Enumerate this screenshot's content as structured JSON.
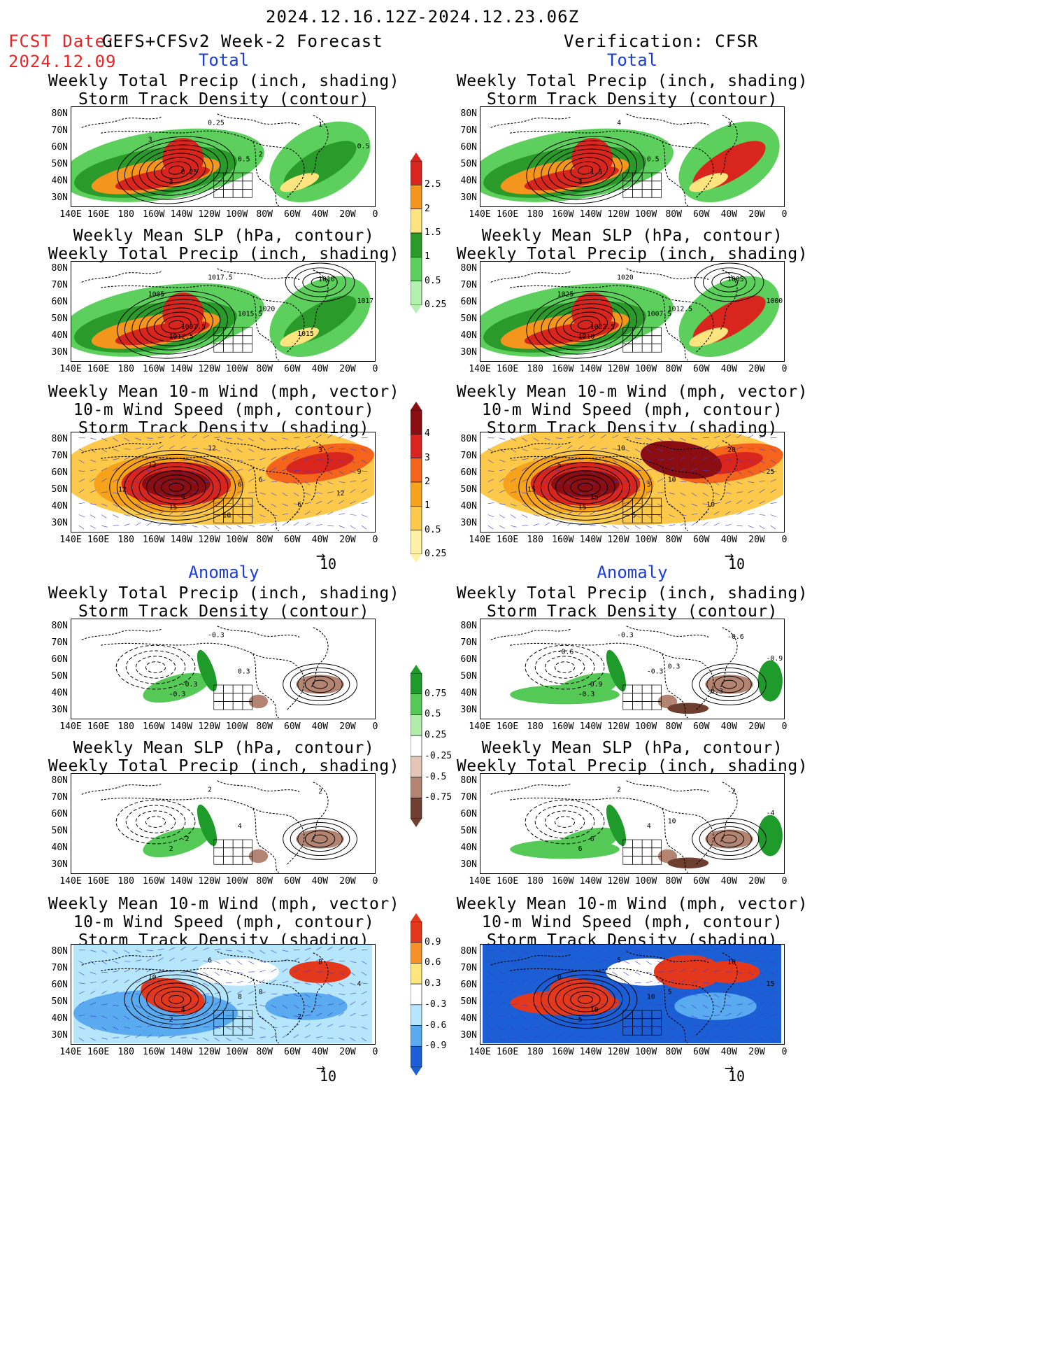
{
  "header": {
    "date_range": "2024.12.16.12Z-2024.12.23.06Z",
    "fcst_label": "FCST Date:",
    "fcst_model": "GEFS+CFSv2 Week-2 Forecast",
    "fcst_date": "2024.12.09",
    "verification": "Verification: CFSR"
  },
  "sections": {
    "total": "Total",
    "anomaly": "Anomaly"
  },
  "panel_titles": {
    "precip_storm": "Weekly Total Precip (inch, shading)\nStorm Track Density (contour)",
    "slp_precip": "Weekly Mean SLP (hPa, contour)\nWeekly Total Precip (inch, shading)",
    "wind_storm": "Weekly Mean 10-m Wind (mph, vector)\n10-m Wind Speed (mph, contour)\nStorm Track Density (shading)"
  },
  "axes": {
    "lat_labels": [
      "80N",
      "70N",
      "60N",
      "50N",
      "40N",
      "30N"
    ],
    "lon_labels": [
      "140E",
      "160E",
      "180",
      "160W",
      "140W",
      "120W",
      "100W",
      "80W",
      "60W",
      "40W",
      "20W",
      "0"
    ]
  },
  "vector_ref": "10",
  "colorbars": {
    "precip_total": {
      "labels": [
        "2.5",
        "2",
        "1.5",
        "1",
        "0.5",
        "0.25"
      ],
      "colors": [
        "#d8251e",
        "#f4951d",
        "#fde47f",
        "#2a9b2a",
        "#5ccf5c",
        "#b4f0b0"
      ]
    },
    "storm_total": {
      "labels": [
        "4",
        "3",
        "2",
        "1",
        "0.5",
        "0.25"
      ],
      "colors": [
        "#8a0d12",
        "#d8251e",
        "#f4641d",
        "#f7a21b",
        "#fcc94a",
        "#fff1a6"
      ]
    },
    "precip_anom": {
      "labels": [
        "0.75",
        "0.5",
        "0.25",
        "-0.25",
        "-0.5",
        "-0.75"
      ],
      "colors": [
        "#1f9b2b",
        "#55c955",
        "#b2ecaa",
        "#ffffff",
        "#e4c4b4",
        "#b48472",
        "#6e3f30"
      ]
    },
    "storm_anom": {
      "labels": [
        "0.9",
        "0.6",
        "0.3",
        "-0.3",
        "-0.6",
        "-0.9"
      ],
      "colors": [
        "#e3381c",
        "#f6912a",
        "#fde67c",
        "#ffffff",
        "#b5e6fb",
        "#5aaaf0",
        "#1c5ed4"
      ]
    }
  },
  "contour_labels": {
    "p1": [
      "0.25",
      "0.5",
      "0.25",
      "3",
      "1",
      "0.5",
      "2",
      "3"
    ],
    "p2": [
      "4",
      "0.5",
      "1.5",
      "3",
      "3"
    ],
    "p3": [
      "1017.5",
      "1015.5",
      "1007.5",
      "1012.5",
      "1010",
      "1017.5",
      "1020",
      "1005",
      "1015"
    ],
    "p4": [
      "1020",
      "1007.5",
      "1022.5",
      "1010",
      "1005",
      "1000",
      "1012.5",
      "1025"
    ],
    "p5": [
      "12",
      "6",
      "9",
      "15",
      "3",
      "9",
      "6",
      "12",
      "6",
      "12",
      "18",
      "12"
    ],
    "p6": [
      "10",
      "5",
      "15",
      "15",
      "20",
      "25",
      "10",
      "5",
      "10",
      "15",
      "5"
    ],
    "p7": [
      "-0.3",
      "0.3",
      "-0.3",
      "-0.3"
    ],
    "p8": [
      "-0.3",
      "-0.3",
      "0.9",
      "-0.3",
      "-0.6",
      "-0.9",
      "0.3",
      "-0.6",
      "-0.3"
    ],
    "p9": [
      "2",
      "4",
      "-2",
      "2",
      "2"
    ],
    "p10": [
      "2",
      "4",
      "6",
      "6",
      "-2",
      "-4",
      "10"
    ],
    "p11": [
      "6",
      "8",
      "4",
      "2",
      "8",
      "4",
      "0",
      "10",
      "2"
    ],
    "p12": [
      "5",
      "10",
      "10",
      "5",
      "10",
      "15",
      "5",
      "0"
    ]
  }
}
